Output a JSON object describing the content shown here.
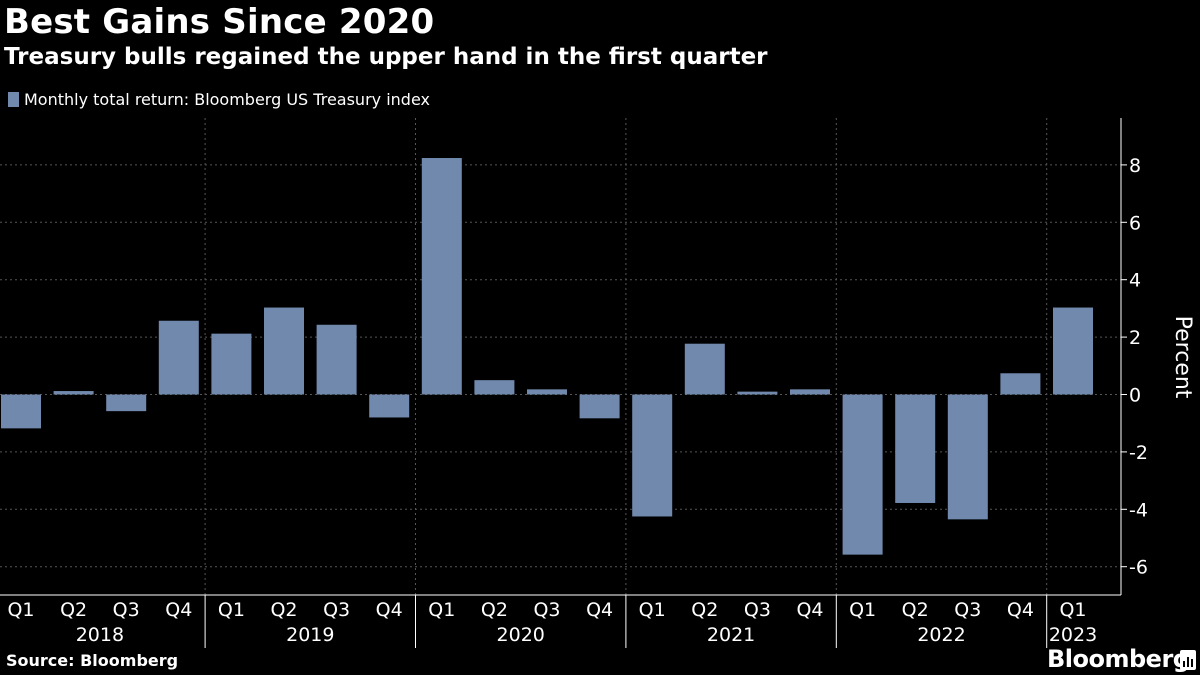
{
  "title": "Best Gains Since 2020",
  "subtitle": "Treasury bulls regained the upper hand in the first quarter",
  "source": "Source: Bloomberg",
  "brand": "Bloomberg",
  "chart_data": {
    "type": "bar",
    "legend": "Monthly total return: Bloomberg US Treasury index",
    "bar_color": "#7089ad",
    "categories": [
      "Q1",
      "Q2",
      "Q3",
      "Q4",
      "Q1",
      "Q2",
      "Q3",
      "Q4",
      "Q1",
      "Q2",
      "Q3",
      "Q4",
      "Q1",
      "Q2",
      "Q3",
      "Q4",
      "Q1",
      "Q2",
      "Q3",
      "Q4",
      "Q1"
    ],
    "years": [
      {
        "label": "2018",
        "start": 0,
        "end": 3
      },
      {
        "label": "2019",
        "start": 4,
        "end": 7
      },
      {
        "label": "2020",
        "start": 8,
        "end": 11
      },
      {
        "label": "2021",
        "start": 12,
        "end": 15
      },
      {
        "label": "2022",
        "start": 16,
        "end": 19
      },
      {
        "label": "2023",
        "start": 20,
        "end": 20
      }
    ],
    "values": [
      -1.18,
      0.12,
      -0.58,
      2.57,
      2.12,
      3.03,
      2.43,
      -0.8,
      8.24,
      0.5,
      0.18,
      -0.83,
      -4.25,
      1.77,
      0.1,
      0.18,
      -5.58,
      -3.78,
      -4.35,
      0.74,
      3.03
    ],
    "ylabel": "Percent",
    "yticks": [
      -6,
      -4,
      -2,
      0,
      2,
      4,
      6,
      8
    ],
    "ytick_labels": [
      "-6",
      "-4",
      "-2",
      "0",
      "2",
      "4",
      "6",
      "8"
    ],
    "ylim": [
      -7,
      9.5
    ],
    "grid": true,
    "legend_position": "top-left"
  }
}
